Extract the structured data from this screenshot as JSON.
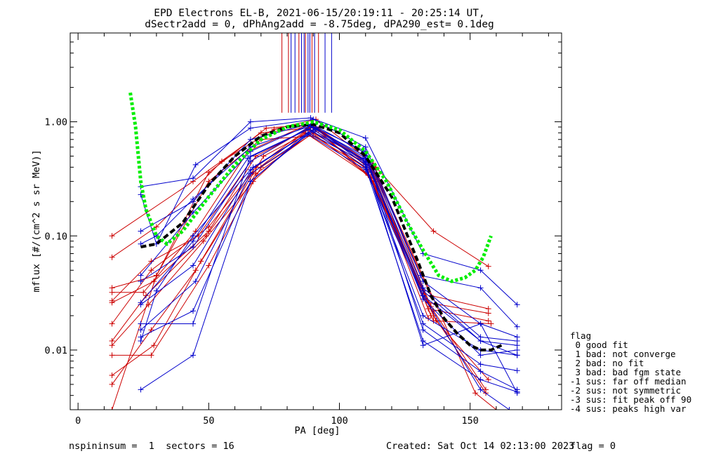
{
  "chart_data": {
    "type": "line",
    "title_line1": "EPD Electrons EL-B, 2021-06-15/20:19:11 - 20:25:14 UT,",
    "title_line2": "dSectr2add = 0, dPhAng2add = -8.75deg, dPA290_est=   0.1deg",
    "xlabel": "PA [deg]",
    "ylabel": "mflux [#/(cm^2 s sr MeV)]",
    "xlim": [
      -3,
      185
    ],
    "ylim": [
      0.003,
      6
    ],
    "yscale": "log",
    "xticks": [
      0,
      50,
      100,
      150
    ],
    "xtick_labels": [
      "0",
      "50",
      "100",
      "150"
    ],
    "yticks": [
      0.01,
      0.1,
      1.0
    ],
    "ytick_labels": [
      "0.01",
      "0.10",
      "1.00"
    ],
    "colors": {
      "red": "#cc0000",
      "blue": "#0000cc",
      "green": "#00ee00",
      "black": "#000000"
    },
    "vertical_lines": {
      "red": [
        78,
        80.5,
        84.5,
        87,
        89.5,
        92
      ],
      "blue": [
        81.5,
        83,
        85.5,
        86.5,
        88,
        88.7,
        90.5,
        94.5,
        97
      ],
      "ymin": 1.2
    },
    "red_series": [
      [
        [
          13,
          0.1
        ],
        [
          44,
          0.3
        ],
        [
          70,
          0.8
        ],
        [
          91,
          0.9
        ],
        [
          114,
          0.4
        ],
        [
          136,
          0.11
        ],
        [
          157,
          0.054
        ]
      ],
      [
        [
          13,
          0.065
        ],
        [
          30,
          0.12
        ],
        [
          55,
          0.45
        ],
        [
          75,
          0.86
        ],
        [
          91,
          1.05
        ],
        [
          113,
          0.43
        ],
        [
          135,
          0.024
        ]
      ],
      [
        [
          13,
          0.035
        ],
        [
          30,
          0.045
        ],
        [
          50,
          0.36
        ],
        [
          72,
          0.88
        ],
        [
          90,
          0.95
        ],
        [
          112,
          0.38
        ],
        [
          134,
          0.019
        ]
      ],
      [
        [
          13,
          0.032
        ],
        [
          25,
          0.032
        ],
        [
          45,
          0.11
        ],
        [
          65,
          0.55
        ],
        [
          88,
          0.95
        ],
        [
          112,
          0.42
        ],
        [
          135,
          0.03
        ],
        [
          157,
          0.023
        ]
      ],
      [
        [
          13,
          0.027
        ],
        [
          28,
          0.06
        ],
        [
          46,
          0.1
        ],
        [
          66,
          0.45
        ],
        [
          88,
          0.88
        ],
        [
          110,
          0.4
        ],
        [
          134,
          0.026
        ],
        [
          157,
          0.021
        ]
      ],
      [
        [
          13,
          0.026
        ],
        [
          29,
          0.04
        ],
        [
          50,
          0.11
        ],
        [
          68,
          0.5
        ],
        [
          90,
          0.92
        ],
        [
          113,
          0.39
        ],
        [
          134,
          0.023
        ],
        [
          157,
          0.018
        ]
      ],
      [
        [
          13,
          0.017
        ],
        [
          28,
          0.05
        ],
        [
          50,
          0.12
        ],
        [
          68,
          0.4
        ],
        [
          89,
          0.9
        ],
        [
          112,
          0.36
        ],
        [
          137,
          0.018
        ],
        [
          158,
          0.017
        ]
      ],
      [
        [
          13,
          0.012
        ],
        [
          26,
          0.03
        ],
        [
          49,
          0.1
        ],
        [
          67,
          0.36
        ],
        [
          88,
          0.85
        ],
        [
          112,
          0.33
        ],
        [
          136,
          0.018
        ]
      ],
      [
        [
          13,
          0.011
        ],
        [
          27,
          0.025
        ],
        [
          48,
          0.09
        ],
        [
          67,
          0.3
        ],
        [
          87,
          0.8
        ],
        [
          111,
          0.34
        ],
        [
          136,
          0.022
        ],
        [
          156,
          0.0045
        ]
      ],
      [
        [
          13,
          0.009
        ],
        [
          28,
          0.009
        ],
        [
          50,
          0.055
        ],
        [
          70,
          0.4
        ],
        [
          92,
          0.85
        ],
        [
          113,
          0.3
        ],
        [
          136,
          0.02
        ],
        [
          156,
          0.0042
        ]
      ],
      [
        [
          13,
          0.006
        ],
        [
          29,
          0.011
        ],
        [
          47,
          0.06
        ],
        [
          71,
          0.5
        ],
        [
          91,
          0.88
        ],
        [
          114,
          0.3
        ],
        [
          137,
          0.018
        ],
        [
          157,
          0.0055
        ]
      ],
      [
        [
          13,
          0.005
        ],
        [
          28,
          0.015
        ],
        [
          45,
          0.05
        ],
        [
          68,
          0.35
        ],
        [
          90,
          0.8
        ],
        [
          112,
          0.4
        ],
        [
          135,
          0.02
        ]
      ],
      [
        [
          13,
          0.003
        ],
        [
          30,
          0.045
        ],
        [
          50,
          0.3
        ],
        [
          70,
          0.7
        ],
        [
          90,
          0.75
        ],
        [
          114,
          0.35
        ],
        [
          137,
          0.025
        ],
        [
          152,
          0.0042
        ],
        [
          160,
          0.003
        ]
      ]
    ],
    "blue_series": [
      [
        [
          24,
          0.27
        ],
        [
          44,
          0.32
        ],
        [
          66,
          1.0
        ],
        [
          89,
          1.08
        ],
        [
          110,
          0.72
        ],
        [
          132,
          0.07
        ],
        [
          154,
          0.05
        ],
        [
          168,
          0.025
        ]
      ],
      [
        [
          24,
          0.23
        ],
        [
          30,
          0.085
        ],
        [
          45,
          0.42
        ],
        [
          66,
          0.88
        ],
        [
          90,
          1.05
        ],
        [
          110,
          0.6
        ],
        [
          131,
          0.045
        ],
        [
          154,
          0.035
        ],
        [
          168,
          0.016
        ]
      ],
      [
        [
          24,
          0.11
        ],
        [
          44,
          0.2
        ],
        [
          66,
          0.7
        ],
        [
          88,
          0.95
        ],
        [
          110,
          0.55
        ],
        [
          132,
          0.04
        ],
        [
          154,
          0.017
        ],
        [
          168,
          0.013
        ]
      ],
      [
        [
          24,
          0.085
        ],
        [
          30,
          0.1
        ],
        [
          44,
          0.21
        ],
        [
          66,
          0.6
        ],
        [
          90,
          0.94
        ],
        [
          110,
          0.53
        ],
        [
          132,
          0.035
        ],
        [
          154,
          0.013
        ],
        [
          168,
          0.012
        ]
      ],
      [
        [
          24,
          0.045
        ],
        [
          44,
          0.16
        ],
        [
          66,
          0.55
        ],
        [
          88,
          0.93
        ],
        [
          110,
          0.5
        ],
        [
          132,
          0.03
        ],
        [
          154,
          0.012
        ],
        [
          168,
          0.011
        ]
      ],
      [
        [
          24,
          0.04
        ],
        [
          44,
          0.08
        ],
        [
          66,
          0.45
        ],
        [
          89,
          0.92
        ],
        [
          110,
          0.48
        ],
        [
          132,
          0.028
        ],
        [
          154,
          0.009
        ],
        [
          168,
          0.01
        ]
      ],
      [
        [
          24,
          0.026
        ],
        [
          44,
          0.09
        ],
        [
          65,
          0.48
        ],
        [
          90,
          0.9
        ],
        [
          109,
          0.47
        ],
        [
          132,
          0.02
        ],
        [
          154,
          0.01
        ],
        [
          168,
          0.009
        ]
      ],
      [
        [
          24,
          0.025
        ],
        [
          44,
          0.055
        ],
        [
          67,
          0.4
        ],
        [
          91,
          0.88
        ],
        [
          110,
          0.42
        ],
        [
          132,
          0.017
        ],
        [
          154,
          0.0075
        ],
        [
          168,
          0.0066
        ]
      ],
      [
        [
          24,
          0.017
        ],
        [
          44,
          0.017
        ],
        [
          66,
          0.5
        ],
        [
          88,
          0.86
        ],
        [
          111,
          0.45
        ],
        [
          132,
          0.015
        ],
        [
          154,
          0.0065
        ],
        [
          168,
          0.0045
        ]
      ],
      [
        [
          24,
          0.015
        ],
        [
          45,
          0.04
        ],
        [
          66,
          0.35
        ],
        [
          90,
          0.82
        ],
        [
          110,
          0.4
        ],
        [
          132,
          0.012
        ],
        [
          154,
          0.0055
        ],
        [
          168,
          0.0043
        ]
      ],
      [
        [
          24,
          0.013
        ],
        [
          44,
          0.022
        ],
        [
          66,
          0.3
        ],
        [
          88,
          0.8
        ],
        [
          110,
          0.44
        ],
        [
          132,
          0.011
        ],
        [
          154,
          0.017
        ],
        [
          168,
          0.0042
        ]
      ],
      [
        [
          24,
          0.012
        ],
        [
          30,
          0.033
        ],
        [
          44,
          0.1
        ],
        [
          66,
          0.38
        ],
        [
          90,
          0.85
        ],
        [
          110,
          0.45
        ],
        [
          132,
          0.033
        ],
        [
          154,
          0.012
        ],
        [
          168,
          0.009
        ]
      ],
      [
        [
          24,
          0.0045
        ],
        [
          44,
          0.009
        ],
        [
          66,
          0.3
        ],
        [
          88,
          0.78
        ],
        [
          110,
          0.38
        ],
        [
          132,
          0.03
        ],
        [
          154,
          0.0045
        ],
        [
          165,
          0.003
        ]
      ]
    ],
    "black_dashed": [
      [
        24,
        0.08
      ],
      [
        30,
        0.085
      ],
      [
        40,
        0.13
      ],
      [
        50,
        0.28
      ],
      [
        60,
        0.5
      ],
      [
        70,
        0.75
      ],
      [
        80,
        0.9
      ],
      [
        90,
        0.95
      ],
      [
        100,
        0.8
      ],
      [
        110,
        0.5
      ],
      [
        120,
        0.22
      ],
      [
        130,
        0.06
      ],
      [
        135,
        0.03
      ],
      [
        140,
        0.019
      ],
      [
        145,
        0.014
      ],
      [
        150,
        0.011
      ],
      [
        154,
        0.01
      ],
      [
        158,
        0.01
      ],
      [
        162,
        0.011
      ]
    ],
    "green_dotted": [
      [
        20,
        1.8
      ],
      [
        22,
        0.9
      ],
      [
        24,
        0.3
      ],
      [
        26,
        0.17
      ],
      [
        30,
        0.1
      ],
      [
        34,
        0.085
      ],
      [
        40,
        0.11
      ],
      [
        50,
        0.22
      ],
      [
        60,
        0.42
      ],
      [
        70,
        0.7
      ],
      [
        80,
        0.9
      ],
      [
        90,
        1.0
      ],
      [
        100,
        0.85
      ],
      [
        110,
        0.55
      ],
      [
        118,
        0.3
      ],
      [
        126,
        0.13
      ],
      [
        132,
        0.075
      ],
      [
        138,
        0.045
      ],
      [
        143,
        0.04
      ],
      [
        148,
        0.043
      ],
      [
        152,
        0.05
      ],
      [
        155,
        0.065
      ],
      [
        158,
        0.1
      ]
    ]
  },
  "legend": {
    "title": "flag",
    "items": [
      " 0 good fit",
      " 1 bad: not converge",
      " 2 bad: no fit",
      " 3 bad: bad fgm state",
      "-1 sus: far off median",
      "-2 sus: not symmetric",
      "-3 sus: fit peak off 90",
      "-4 sus: peaks high var"
    ]
  },
  "footer": {
    "left": "nspininsum =  1  sectors = 16",
    "created": "Created: Sat Oct 14 02:13:00 2023",
    "flag": "flag = 0"
  }
}
